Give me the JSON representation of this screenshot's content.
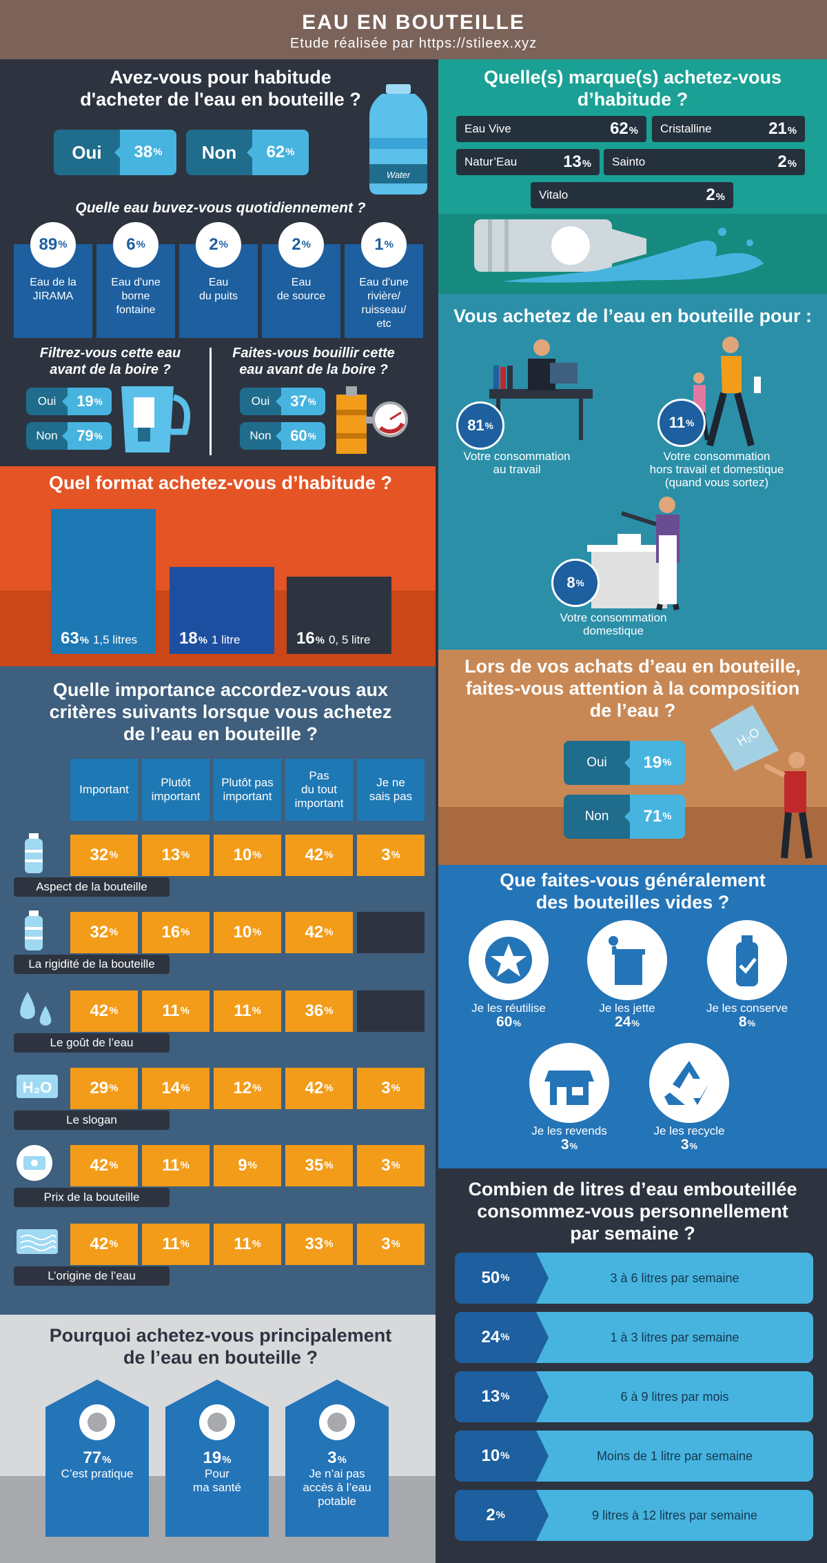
{
  "header": {
    "title": "EAU EN BOUTEILLE",
    "subtitle": "Etude réalisée par https://stileex.xyz"
  },
  "habit": {
    "title_l1": "Avez-vous pour habitude",
    "title_l2": "d'acheter de l'eau en bouteille ?",
    "yes_label": "Oui",
    "yes_pct": "38",
    "no_label": "Non",
    "no_pct": "62",
    "bottle_label": "Water"
  },
  "pct_sign": "%",
  "daily": {
    "title": "Quelle eau buvez-vous quotidiennement ?",
    "items": [
      {
        "pct": "89",
        "l1": "Eau de la",
        "l2": "JIRAMA",
        "l3": "",
        "l4": ""
      },
      {
        "pct": "6",
        "l1": "Eau d'une",
        "l2": "borne",
        "l3": "fontaine",
        "l4": ""
      },
      {
        "pct": "2",
        "l1": "Eau",
        "l2": "du puits",
        "l3": "",
        "l4": ""
      },
      {
        "pct": "2",
        "l1": "Eau",
        "l2": "de source",
        "l3": "",
        "l4": ""
      },
      {
        "pct": "1",
        "l1": "Eau d'une",
        "l2": "rivière/",
        "l3": "ruisseau/",
        "l4": "etc"
      }
    ]
  },
  "filter": {
    "title_l1": "Filtrez-vous cette eau",
    "title_l2": "avant de la boire ?",
    "yes_label": "Oui",
    "yes_pct": "19",
    "no_label": "Non",
    "no_pct": "79"
  },
  "boil": {
    "title_l1": "Faites-vous bouillir cette",
    "title_l2": "eau avant de la boire ?",
    "yes_label": "Oui",
    "yes_pct": "37",
    "no_label": "Non",
    "no_pct": "60"
  },
  "brands": {
    "title_l1": "Quelle(s) marque(s) achetez-vous",
    "title_l2": "d’habitude ?",
    "items": [
      {
        "name": "Eau Vive",
        "pct": "62"
      },
      {
        "name": "Cristalline",
        "pct": "21"
      },
      {
        "name": "Natur’Eau",
        "pct": "13"
      },
      {
        "name": "Sainto",
        "pct": "2"
      },
      {
        "name": "Vitalo",
        "pct": "2"
      }
    ]
  },
  "purpose": {
    "title": "Vous achetez de l’eau en bouteille pour :",
    "items": [
      {
        "pct": "81",
        "l1": "Votre consommation",
        "l2": "au travail",
        "l3": ""
      },
      {
        "pct": "11",
        "l1": "Votre consommation",
        "l2": "hors travail et domestique",
        "l3": "(quand vous sortez)"
      },
      {
        "pct": "8",
        "l1": "Votre consommation",
        "l2": "domestique",
        "l3": ""
      }
    ]
  },
  "chart_data": {
    "type": "bar",
    "title": "Quel format achetez-vous d’habitude ?",
    "categories": [
      "1,5 litres",
      "1 litre",
      "0, 5 litre"
    ],
    "values": [
      63,
      18,
      16
    ],
    "colors": [
      "#1e78b4",
      "#1d4fa0",
      "#2d3440"
    ]
  },
  "composition": {
    "title_l1": "Lors de vos achats d’eau en bouteille,",
    "title_l2": "faites-vous attention à la composition",
    "title_l3": "de l’eau ?",
    "yes_label": "Oui",
    "yes_pct": "19",
    "no_label": "Non",
    "no_pct": "71"
  },
  "criteria": {
    "title_l1": "Quelle importance accordez-vous aux",
    "title_l2": "critères suivants lorsque vous achetez",
    "title_l3": "de l’eau en bouteille ?",
    "headers": [
      "Important",
      "Plutôt important",
      "Plutôt pas important",
      "Pas du tout important",
      "Je ne sais pas"
    ],
    "header_lines": [
      [
        "Important",
        "",
        ""
      ],
      [
        "Plutôt",
        "important",
        ""
      ],
      [
        "Plutôt pas",
        "important",
        ""
      ],
      [
        "Pas",
        "du tout",
        "important"
      ],
      [
        "Je ne",
        "sais pas",
        ""
      ]
    ],
    "rows": [
      {
        "label": "Aspect de la bouteille",
        "values": [
          "32",
          "13",
          "10",
          "42",
          "3"
        ]
      },
      {
        "label": "La rigidité de la bouteille",
        "values": [
          "32",
          "16",
          "10",
          "42",
          ""
        ]
      },
      {
        "label": "Le goût de l’eau",
        "values": [
          "42",
          "11",
          "11",
          "36",
          ""
        ]
      },
      {
        "label": "Le slogan",
        "values": [
          "29",
          "14",
          "12",
          "42",
          "3"
        ]
      },
      {
        "label": "Prix de la bouteille",
        "values": [
          "42",
          "11",
          "9",
          "35",
          "3"
        ]
      },
      {
        "label": "L’origine de l’eau",
        "values": [
          "42",
          "11",
          "11",
          "33",
          "3"
        ]
      }
    ]
  },
  "empty": {
    "title_l1": "Que faites-vous généralement",
    "title_l2": "des bouteilles vides ?",
    "items": [
      {
        "label": "Je les réutilise",
        "pct": "60"
      },
      {
        "label": "Je les jette",
        "pct": "24"
      },
      {
        "label": "Je les conserve",
        "pct": "8"
      },
      {
        "label": "Je les revends",
        "pct": "3"
      },
      {
        "label": "Je les recycle",
        "pct": "3"
      }
    ]
  },
  "liters": {
    "title_l1": "Combien de litres d’eau embouteillée",
    "title_l2": "consommez-vous personnellement",
    "title_l3": "par semaine ?",
    "items": [
      {
        "pct": "50",
        "label": "3 à 6 litres par semaine"
      },
      {
        "pct": "24",
        "label": "1 à 3 litres par semaine"
      },
      {
        "pct": "13",
        "label": "6 à 9 litres par mois"
      },
      {
        "pct": "10",
        "label": "Moins de 1 litre par semaine"
      },
      {
        "pct": "2",
        "label": "9 litres à 12 litres par semaine"
      }
    ]
  },
  "why": {
    "title_l1": "Pourquoi achetez-vous principalement",
    "title_l2": "de l’eau en bouteille ?",
    "items": [
      {
        "pct": "77",
        "l1": "C’est pratique",
        "l2": "",
        "l3": ""
      },
      {
        "pct": "19",
        "l1": "Pour",
        "l2": "ma santé",
        "l3": ""
      },
      {
        "pct": "3",
        "l1": "Je n’ai pas",
        "l2": "accès à l’eau",
        "l3": "potable"
      }
    ]
  }
}
